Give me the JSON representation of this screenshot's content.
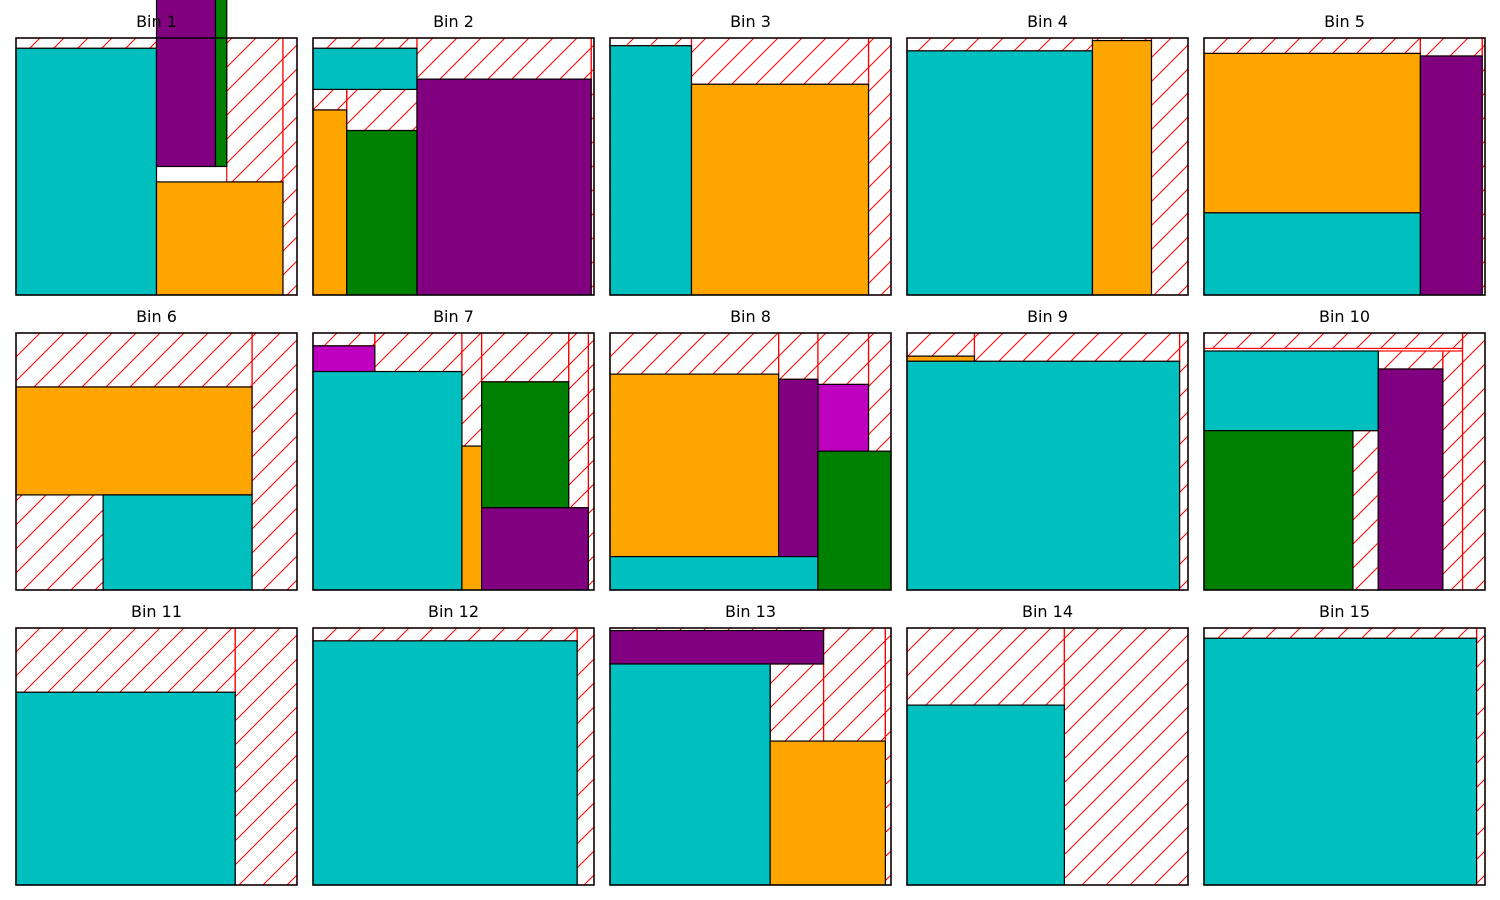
{
  "figure": {
    "colors": {
      "cyan": "#00BFBF",
      "orange": "#FFA500",
      "purple": "#800080",
      "green": "#008000",
      "magenta": "#BF00BF",
      "outline": "#000000",
      "waste": "#FF0000"
    },
    "bins": [
      {
        "title": "Bin 1",
        "items": [
          {
            "c": "cyan",
            "r": [
              0,
              0,
              0.5,
              0.96
            ]
          },
          {
            "c": "purple",
            "r": [
              0.5,
              0.5,
              0.21,
              0.89
            ]
          },
          {
            "c": "green",
            "r": [
              0.71,
              0.5,
              0.04,
              0.88
            ]
          },
          {
            "c": "orange",
            "r": [
              0.5,
              0,
              0.45,
              0.44
            ]
          }
        ],
        "waste": [
          [
            0,
            0.96,
            0.5,
            0.04
          ],
          [
            0.5,
            0.89,
            0.21,
            0.11
          ],
          [
            0.71,
            0.88,
            0.04,
            0.12
          ],
          [
            0.75,
            0.44,
            0.2,
            0.56
          ],
          [
            0.95,
            0,
            0.05,
            1
          ]
        ]
      },
      {
        "title": "Bin 2",
        "items": [
          {
            "c": "cyan",
            "r": [
              0,
              0.8,
              0.37,
              0.16
            ]
          },
          {
            "c": "orange",
            "r": [
              0,
              0,
              0.12,
              0.72
            ]
          },
          {
            "c": "green",
            "r": [
              0.12,
              0,
              0.25,
              0.64
            ]
          },
          {
            "c": "purple",
            "r": [
              0.37,
              0,
              0.62,
              0.84
            ]
          }
        ],
        "waste": [
          [
            0,
            0.96,
            0.37,
            0.04
          ],
          [
            0,
            0.72,
            0.12,
            0.08
          ],
          [
            0.12,
            0.64,
            0.25,
            0.16
          ],
          [
            0.37,
            0.84,
            0.62,
            0.16
          ],
          [
            0.99,
            0,
            0.01,
            1
          ]
        ]
      },
      {
        "title": "Bin 3",
        "items": [
          {
            "c": "cyan",
            "r": [
              0,
              0,
              0.29,
              0.97
            ]
          },
          {
            "c": "orange",
            "r": [
              0.29,
              0,
              0.63,
              0.82
            ]
          }
        ],
        "waste": [
          [
            0,
            0.97,
            0.29,
            0.03
          ],
          [
            0.29,
            0.82,
            0.63,
            0.18
          ],
          [
            0.92,
            0,
            0.08,
            1
          ]
        ]
      },
      {
        "title": "Bin 4",
        "items": [
          {
            "c": "cyan",
            "r": [
              0,
              0,
              0.66,
              0.95
            ]
          },
          {
            "c": "orange",
            "r": [
              0.66,
              0,
              0.21,
              0.99
            ]
          }
        ],
        "waste": [
          [
            0,
            0.95,
            0.66,
            0.05
          ],
          [
            0.66,
            0.99,
            0.21,
            0.01
          ],
          [
            0.87,
            0,
            0.13,
            1
          ]
        ]
      },
      {
        "title": "Bin 5",
        "items": [
          {
            "c": "cyan",
            "r": [
              0,
              0,
              0.77,
              0.32
            ]
          },
          {
            "c": "orange",
            "r": [
              0,
              0.32,
              0.77,
              0.62
            ]
          },
          {
            "c": "purple",
            "r": [
              0.77,
              0,
              0.22,
              0.93
            ]
          }
        ],
        "waste": [
          [
            0,
            0.94,
            0.77,
            0.06
          ],
          [
            0.77,
            0.93,
            0.22,
            0.07
          ],
          [
            0.99,
            0,
            0.01,
            1
          ]
        ]
      },
      {
        "title": "Bin 6",
        "items": [
          {
            "c": "orange",
            "r": [
              0,
              0.37,
              0.84,
              0.42
            ]
          },
          {
            "c": "cyan",
            "r": [
              0.31,
              0,
              0.53,
              0.37
            ]
          }
        ],
        "waste": [
          [
            0,
            0.79,
            0.84,
            0.21
          ],
          [
            0,
            0,
            0.31,
            0.37
          ],
          [
            0.84,
            0,
            0.16,
            1
          ]
        ]
      },
      {
        "title": "Bin 7",
        "items": [
          {
            "c": "magenta",
            "r": [
              0,
              0.85,
              0.22,
              0.1
            ]
          },
          {
            "c": "cyan",
            "r": [
              0,
              0,
              0.53,
              0.85
            ]
          },
          {
            "c": "orange",
            "r": [
              0.53,
              0,
              0.07,
              0.56
            ]
          },
          {
            "c": "green",
            "r": [
              0.6,
              0.32,
              0.31,
              0.49
            ]
          },
          {
            "c": "purple",
            "r": [
              0.6,
              0,
              0.38,
              0.32
            ]
          }
        ],
        "waste": [
          [
            0,
            0.95,
            0.22,
            0.05
          ],
          [
            0.22,
            0.85,
            0.31,
            0.15
          ],
          [
            0.53,
            0.56,
            0.07,
            0.44
          ],
          [
            0.6,
            0.81,
            0.31,
            0.19
          ],
          [
            0.91,
            0.32,
            0.07,
            0.68
          ],
          [
            0.98,
            0,
            0.02,
            1
          ]
        ]
      },
      {
        "title": "Bin 8",
        "items": [
          {
            "c": "orange",
            "r": [
              0,
              0.13,
              0.6,
              0.71
            ]
          },
          {
            "c": "purple",
            "r": [
              0.6,
              0.13,
              0.14,
              0.69
            ]
          },
          {
            "c": "cyan",
            "r": [
              0,
              0,
              0.74,
              0.13
            ]
          },
          {
            "c": "magenta",
            "r": [
              0.74,
              0.54,
              0.18,
              0.26
            ]
          },
          {
            "c": "green",
            "r": [
              0.74,
              0,
              0.26,
              0.54
            ]
          }
        ],
        "waste": [
          [
            0,
            0.84,
            0.6,
            0.16
          ],
          [
            0.6,
            0.82,
            0.14,
            0.18
          ],
          [
            0.74,
            0.8,
            0.18,
            0.2
          ],
          [
            0.92,
            0.54,
            0.08,
            0.46
          ]
        ]
      },
      {
        "title": "Bin 9",
        "items": [
          {
            "c": "orange",
            "r": [
              0,
              0.89,
              0.24,
              0.02
            ]
          },
          {
            "c": "cyan",
            "r": [
              0,
              0,
              0.97,
              0.89
            ]
          }
        ],
        "waste": [
          [
            0,
            0.91,
            0.24,
            0.09
          ],
          [
            0.24,
            0.89,
            0.73,
            0.11
          ],
          [
            0.97,
            0,
            0.03,
            1
          ]
        ]
      },
      {
        "title": "Bin 10",
        "items": [
          {
            "c": "cyan",
            "r": [
              0,
              0.62,
              0.62,
              0.31
            ]
          },
          {
            "c": "green",
            "r": [
              0,
              0,
              0.53,
              0.62
            ]
          },
          {
            "c": "purple",
            "r": [
              0.62,
              0,
              0.23,
              0.86
            ]
          }
        ],
        "waste": [
          [
            0,
            0.94,
            0.92,
            0.06
          ],
          [
            0.53,
            0,
            0.09,
            0.62
          ],
          [
            0.62,
            0.86,
            0.23,
            0.07
          ],
          [
            0.85,
            0,
            0.07,
            0.93
          ],
          [
            0.92,
            0,
            0.08,
            1
          ]
        ]
      },
      {
        "title": "Bin 11",
        "items": [
          {
            "c": "cyan",
            "r": [
              0,
              0,
              0.78,
              0.75
            ]
          }
        ],
        "waste": [
          [
            0,
            0.75,
            0.78,
            0.25
          ],
          [
            0.78,
            0,
            0.22,
            1
          ]
        ]
      },
      {
        "title": "Bin 12",
        "items": [
          {
            "c": "cyan",
            "r": [
              0,
              0,
              0.94,
              0.95
            ]
          }
        ],
        "waste": [
          [
            0,
            0.95,
            0.94,
            0.05
          ],
          [
            0.94,
            0,
            0.06,
            1
          ]
        ]
      },
      {
        "title": "Bin 13",
        "items": [
          {
            "c": "purple",
            "r": [
              0,
              0.86,
              0.76,
              0.13
            ]
          },
          {
            "c": "cyan",
            "r": [
              0,
              0,
              0.57,
              0.86
            ]
          },
          {
            "c": "orange",
            "r": [
              0.57,
              0,
              0.41,
              0.56
            ]
          }
        ],
        "waste": [
          [
            0,
            0.99,
            0.76,
            0.01
          ],
          [
            0.57,
            0.56,
            0.19,
            0.3
          ],
          [
            0.76,
            0.56,
            0.22,
            0.44
          ],
          [
            0.98,
            0,
            0.02,
            1
          ]
        ]
      },
      {
        "title": "Bin 14",
        "items": [
          {
            "c": "cyan",
            "r": [
              0,
              0,
              0.56,
              0.7
            ]
          }
        ],
        "waste": [
          [
            0,
            0.7,
            0.56,
            0.3
          ],
          [
            0.56,
            0,
            0.44,
            1
          ]
        ]
      },
      {
        "title": "Bin 15",
        "items": [
          {
            "c": "cyan",
            "r": [
              0,
              0,
              0.97,
              0.96
            ]
          }
        ],
        "waste": [
          [
            0,
            0.96,
            0.97,
            0.04
          ],
          [
            0.97,
            0,
            0.03,
            1
          ]
        ]
      }
    ]
  }
}
